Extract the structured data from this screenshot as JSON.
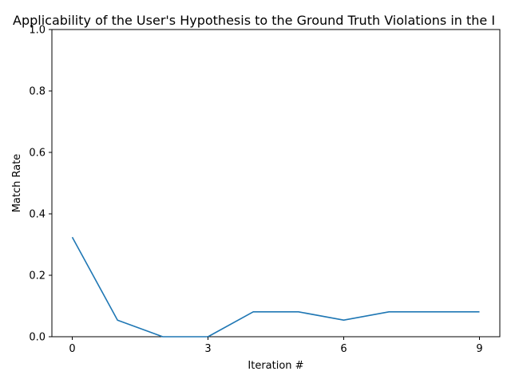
{
  "chart_data": {
    "type": "line",
    "title": "Applicability of the User's Hypothesis to the Ground Truth Violations in the I",
    "xlabel": "Iteration #",
    "ylabel": "Match Rate",
    "xlim": [
      -0.45,
      9.45
    ],
    "ylim": [
      0,
      1
    ],
    "xticks": [
      0,
      3,
      6,
      9
    ],
    "yticks": [
      0.0,
      0.2,
      0.4,
      0.6,
      0.8,
      1.0
    ],
    "grid": false,
    "series": [
      {
        "color": "#1f77b4",
        "x": [
          0,
          1,
          2,
          3,
          4,
          5,
          6,
          7,
          8,
          9
        ],
        "y": [
          0.324,
          0.054,
          0.0,
          0.0,
          0.081,
          0.081,
          0.054,
          0.081,
          0.081,
          0.081
        ]
      }
    ]
  }
}
